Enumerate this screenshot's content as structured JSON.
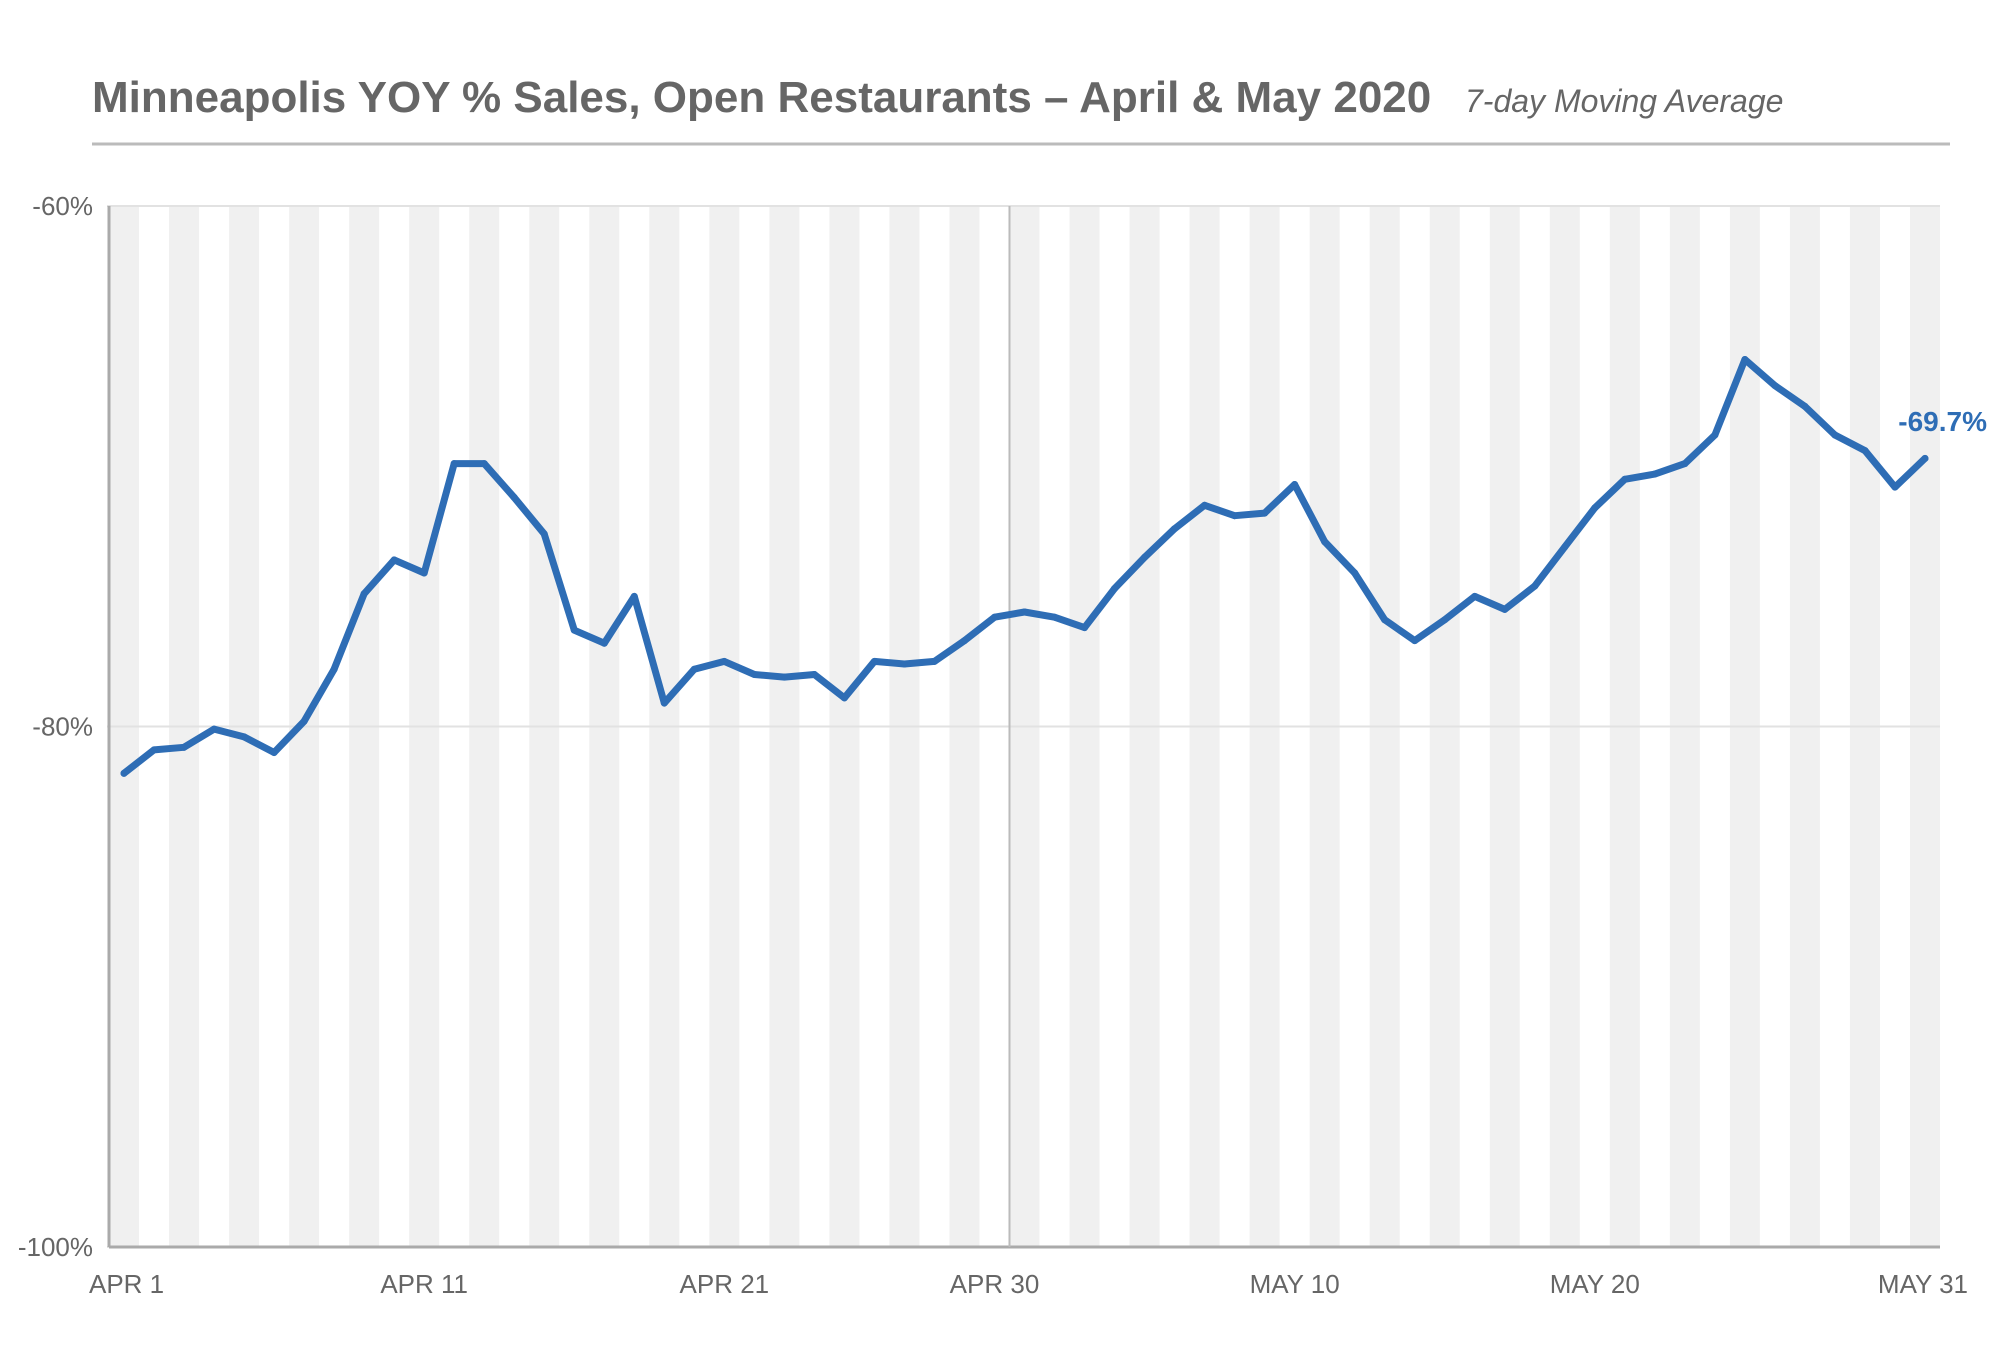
{
  "chart_data": {
    "type": "line",
    "title": "Minneapolis YOY % Sales, Open Restaurants – April & May 2020",
    "subtitle": "7-day Moving Average",
    "xlabel": "",
    "ylabel": "",
    "ylim": [
      -100,
      -60
    ],
    "y_ticks": [
      "-60%",
      "-80%",
      "-100%"
    ],
    "y_tick_values": [
      -60,
      -80,
      -100
    ],
    "x_ticks": [
      "APR 1",
      "APR 11",
      "APR 21",
      "APR 30",
      "MAY 10",
      "MAY 20",
      "MAY 31"
    ],
    "x_tick_values": [
      "2020-04-01",
      "2020-04-11",
      "2020-04-21",
      "2020-04-30",
      "2020-05-10",
      "2020-05-20",
      "2020-05-31"
    ],
    "grid": "horizontal",
    "weekend_shading": true,
    "month_divider": "2020-04-30",
    "line_color": "#2e6db5",
    "end_label": "-69.7%",
    "series": [
      {
        "name": "",
        "x": [
          "2020-04-01",
          "2020-04-02",
          "2020-04-03",
          "2020-04-04",
          "2020-04-05",
          "2020-04-06",
          "2020-04-07",
          "2020-04-08",
          "2020-04-09",
          "2020-04-10",
          "2020-04-11",
          "2020-04-12",
          "2020-04-13",
          "2020-04-14",
          "2020-04-15",
          "2020-04-16",
          "2020-04-17",
          "2020-04-18",
          "2020-04-19",
          "2020-04-20",
          "2020-04-21",
          "2020-04-22",
          "2020-04-23",
          "2020-04-24",
          "2020-04-25",
          "2020-04-26",
          "2020-04-27",
          "2020-04-28",
          "2020-04-29",
          "2020-04-30",
          "2020-05-01",
          "2020-05-02",
          "2020-05-03",
          "2020-05-04",
          "2020-05-05",
          "2020-05-06",
          "2020-05-07",
          "2020-05-08",
          "2020-05-09",
          "2020-05-10",
          "2020-05-11",
          "2020-05-12",
          "2020-05-13",
          "2020-05-14",
          "2020-05-15",
          "2020-05-16",
          "2020-05-17",
          "2020-05-18",
          "2020-05-19",
          "2020-05-20",
          "2020-05-21",
          "2020-05-22",
          "2020-05-23",
          "2020-05-24",
          "2020-05-25",
          "2020-05-26",
          "2020-05-27",
          "2020-05-28",
          "2020-05-29",
          "2020-05-30",
          "2020-05-31"
        ],
        "values": [
          -81.8,
          -80.9,
          -80.8,
          -80.1,
          -80.4,
          -81.0,
          -79.8,
          -77.8,
          -74.9,
          -73.6,
          -74.1,
          -69.9,
          -69.9,
          -71.2,
          -72.6,
          -76.3,
          -76.8,
          -75.0,
          -79.1,
          -77.8,
          -77.5,
          -78.0,
          -78.1,
          -78.0,
          -78.9,
          -77.5,
          -77.6,
          -77.5,
          -76.7,
          -75.8,
          -75.6,
          -75.8,
          -76.2,
          -74.7,
          -73.5,
          -72.4,
          -71.5,
          -71.9,
          -71.8,
          -70.7,
          -72.9,
          -74.1,
          -75.9,
          -76.7,
          -75.9,
          -75.0,
          -75.5,
          -74.6,
          -73.1,
          -71.6,
          -70.5,
          -70.3,
          -69.9,
          -68.8,
          -65.9,
          -66.9,
          -67.7,
          -68.8,
          -69.4,
          -70.8,
          -69.7
        ]
      }
    ]
  }
}
